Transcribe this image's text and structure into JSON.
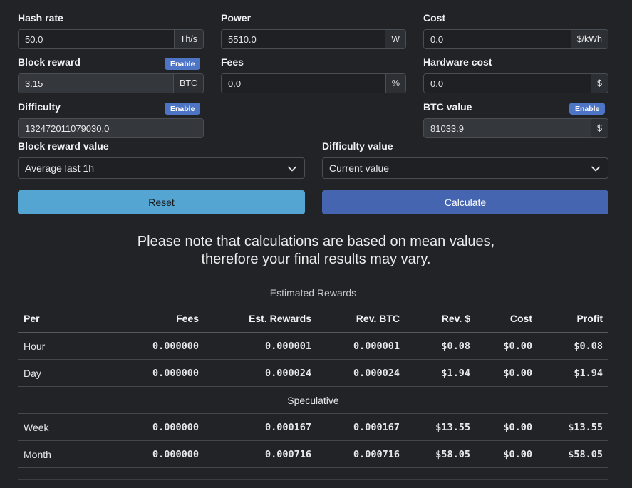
{
  "fields": {
    "hash_rate": {
      "label": "Hash rate",
      "value": "50.0",
      "unit": "Th/s"
    },
    "power": {
      "label": "Power",
      "value": "5510.0",
      "unit": "W"
    },
    "cost": {
      "label": "Cost",
      "value": "0.0",
      "unit": "$/kWh"
    },
    "block_reward": {
      "label": "Block reward",
      "value": "3.15",
      "unit": "BTC",
      "badge": "Enable"
    },
    "fees": {
      "label": "Fees",
      "value": "0.0",
      "unit": "%"
    },
    "hardware_cost": {
      "label": "Hardware cost",
      "value": "0.0",
      "unit": "$"
    },
    "difficulty": {
      "label": "Difficulty",
      "value": "132472011079030.0",
      "badge": "Enable"
    },
    "btc_value": {
      "label": "BTC value",
      "value": "81033.9",
      "unit": "$",
      "badge": "Enable"
    }
  },
  "selects": {
    "block_reward_value": {
      "label": "Block reward value",
      "selected": "Average last 1h"
    },
    "difficulty_value": {
      "label": "Difficulty value",
      "selected": "Current value"
    }
  },
  "buttons": {
    "reset": "Reset",
    "calculate": "Calculate"
  },
  "note": {
    "line1": "Please note that calculations are based on mean values,",
    "line2": "therefore your final results may vary."
  },
  "table": {
    "caption": "Estimated Rewards",
    "headers": [
      "Per",
      "Fees",
      "Est. Rewards",
      "Rev. BTC",
      "Rev. $",
      "Cost",
      "Profit"
    ],
    "rows": [
      [
        "Hour",
        "0.000000",
        "0.000001",
        "0.000001",
        "$0.08",
        "$0.00",
        "$0.08"
      ],
      [
        "Day",
        "0.000000",
        "0.000024",
        "0.000024",
        "$1.94",
        "$0.00",
        "$1.94"
      ]
    ],
    "section": "Speculative",
    "spec_rows": [
      [
        "Week",
        "0.000000",
        "0.000167",
        "0.000167",
        "$13.55",
        "$0.00",
        "$13.55"
      ],
      [
        "Month",
        "0.000000",
        "0.000716",
        "0.000716",
        "$58.05",
        "$0.00",
        "$58.05"
      ]
    ]
  },
  "colors": {
    "background": "#212326",
    "primary": "#4565b0",
    "info": "#55a5d2",
    "badge": "#4e74c5"
  },
  "icons": {
    "select_arrow": "chevron-down-icon"
  }
}
